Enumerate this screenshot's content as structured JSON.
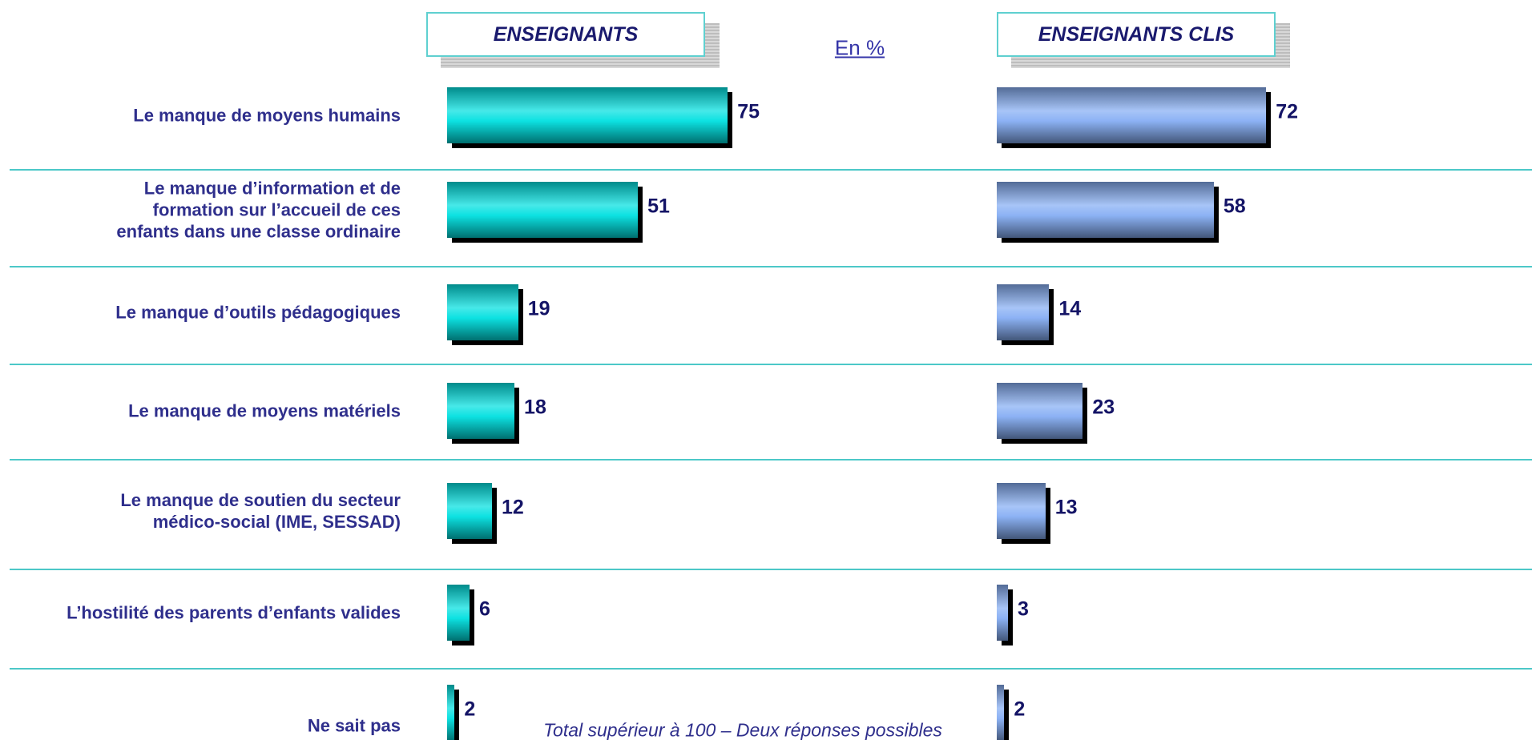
{
  "chart_data": {
    "type": "bar",
    "orientation": "horizontal",
    "unit": "En %",
    "note": "Total supérieur à 100 – Deux réponses possibles",
    "categories": [
      "Le manque de moyens humains",
      "Le manque d’information et de formation sur l’accueil de ces enfants dans une classe ordinaire",
      "Le manque d’outils pédagogiques",
      "Le manque de moyens matériels",
      "Le manque de soutien du secteur médico-social (IME, SESSAD)",
      "L’hostilité des parents d’enfants valides",
      "Ne sait pas"
    ],
    "series": [
      {
        "name": "ENSEIGNANTS",
        "color": "#00e0e0",
        "values": [
          75,
          51,
          19,
          18,
          12,
          6,
          2
        ]
      },
      {
        "name": "ENSEIGNANTS CLIS",
        "color": "#86aef4",
        "values": [
          72,
          58,
          14,
          23,
          13,
          3,
          2
        ]
      }
    ]
  }
}
